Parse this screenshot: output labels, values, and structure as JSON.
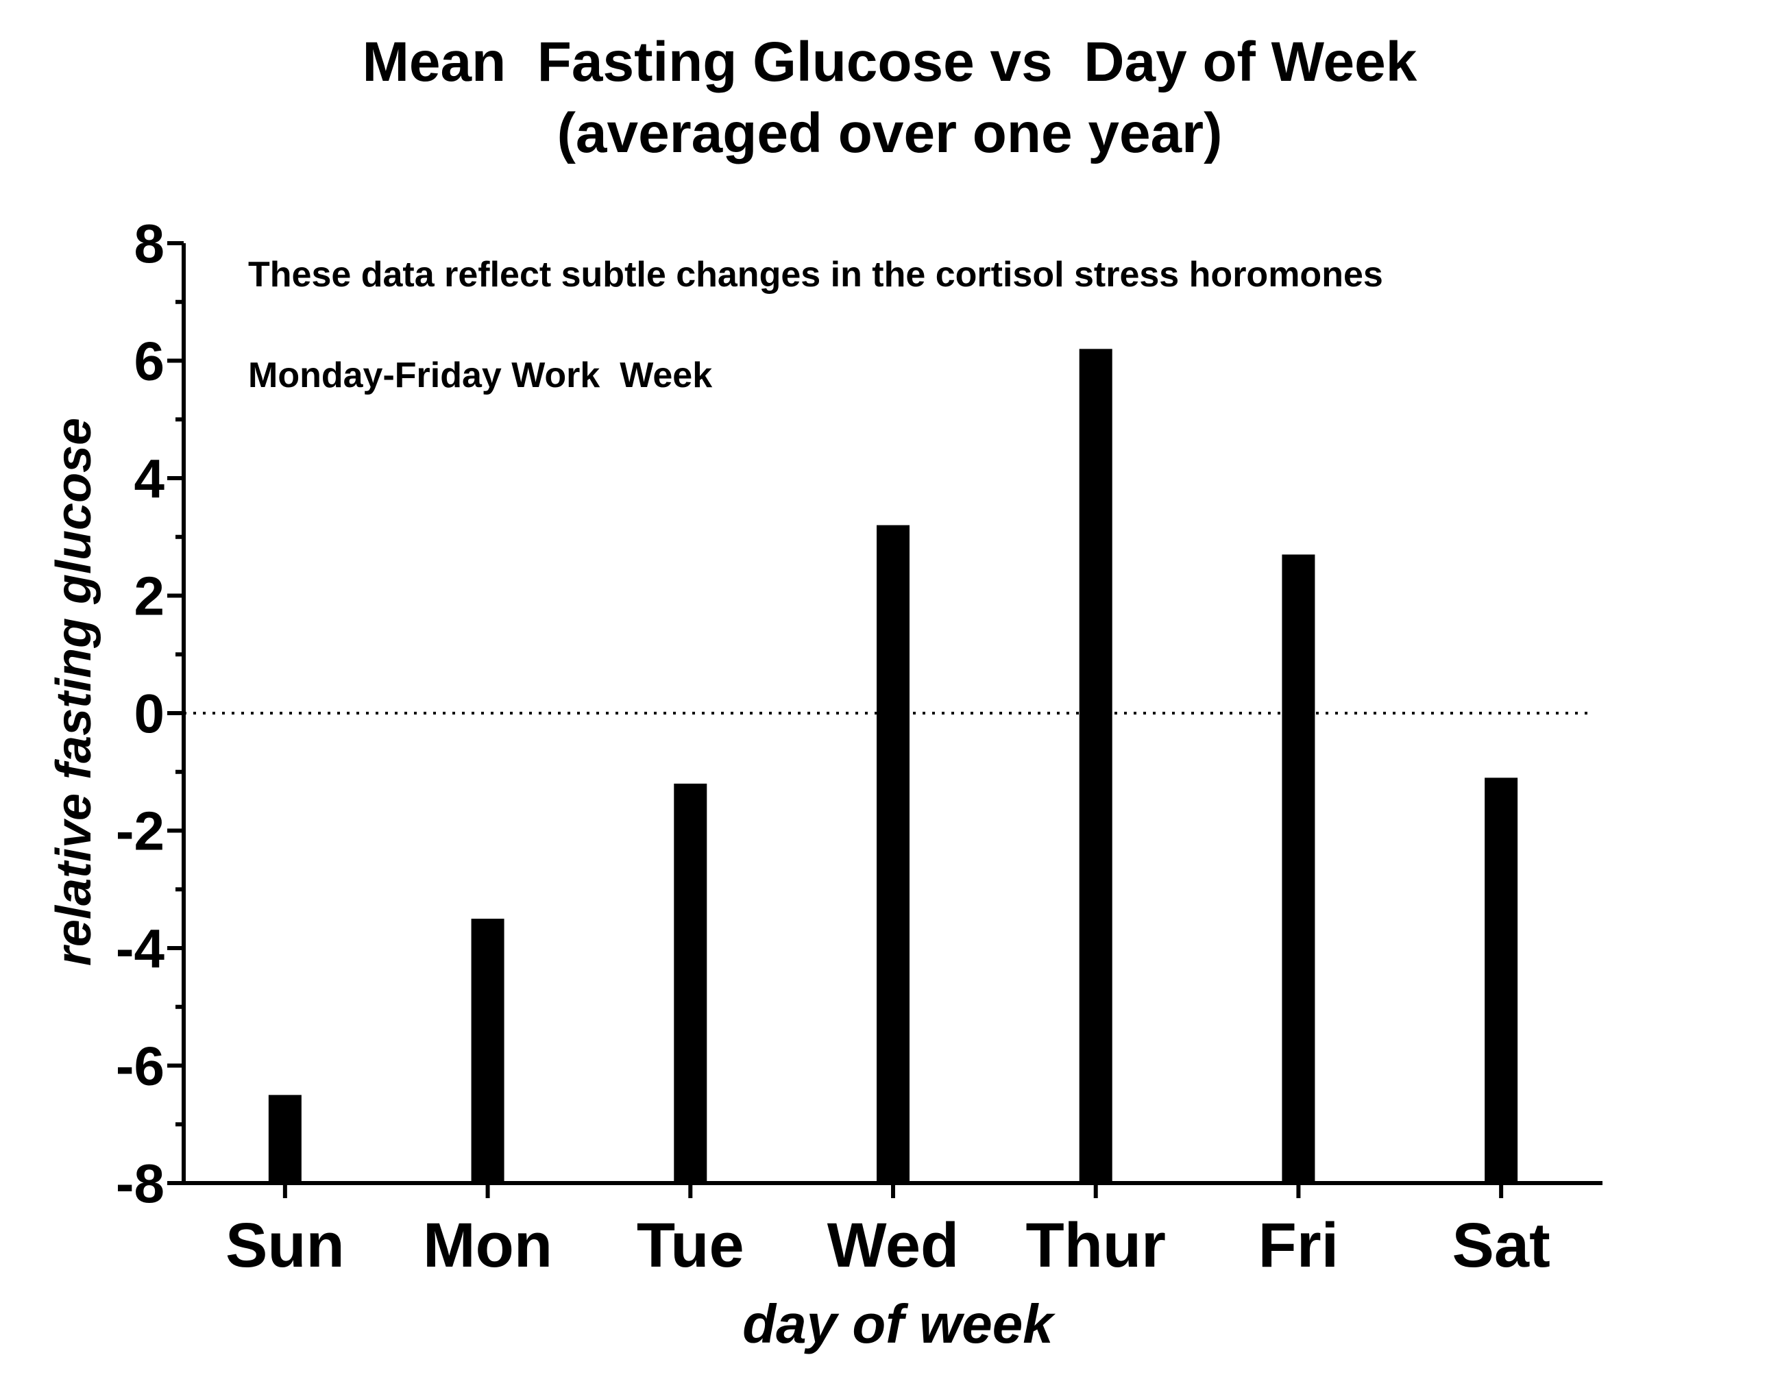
{
  "chart_data": {
    "type": "bar",
    "title": "Mean  Fasting Glucose vs  Day of Week",
    "subtitle": "(averaged over one year)",
    "xlabel": "day of week",
    "ylabel": "relative fasting glucose",
    "categories": [
      "Sun",
      "Mon",
      "Tue",
      "Wed",
      "Thur",
      "Fri",
      "Sat"
    ],
    "values": [
      -6.5,
      -3.5,
      -1.2,
      3.2,
      6.2,
      2.7,
      -1.1
    ],
    "ylim": [
      -8,
      8
    ],
    "yticks": [
      "-8",
      "-6",
      "-4",
      "-2",
      "0",
      "2",
      "4",
      "6",
      "8"
    ],
    "reference_line": 0,
    "bar_color": "#000000",
    "grid": false,
    "legend": "none",
    "annotations": [
      "These data reflect subtle changes in the cortisol stress horomones",
      "Monday-Friday Work  Week"
    ]
  }
}
